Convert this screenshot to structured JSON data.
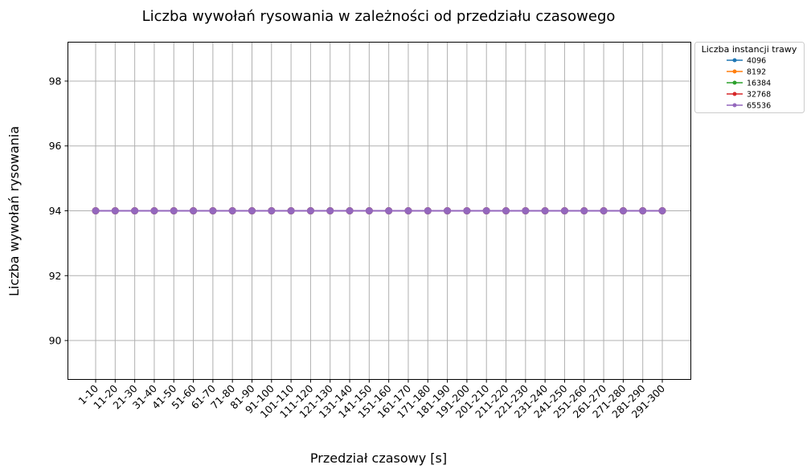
{
  "chart_data": {
    "type": "line",
    "title": "Liczba wywołań rysowania w zależności od przedziału czasowego",
    "xlabel": "Przedział czasowy [s]",
    "ylabel": "Liczba wywołań rysowania",
    "categories": [
      "1-10",
      "11-20",
      "21-30",
      "31-40",
      "41-50",
      "51-60",
      "61-70",
      "71-80",
      "81-90",
      "91-100",
      "101-110",
      "111-120",
      "121-130",
      "131-140",
      "141-150",
      "151-160",
      "161-170",
      "171-180",
      "181-190",
      "191-200",
      "201-210",
      "211-220",
      "221-230",
      "231-240",
      "241-250",
      "251-260",
      "261-270",
      "271-280",
      "281-290",
      "291-300"
    ],
    "yticks": [
      90,
      92,
      94,
      96,
      98
    ],
    "ylim": [
      88.8,
      99.2
    ],
    "grid": true,
    "legend": {
      "title": "Liczba instancji trawy",
      "placement": "outside-top-right"
    },
    "series": [
      {
        "name": "4096",
        "color": "#1f77b4",
        "values": [
          94,
          94,
          94,
          94,
          94,
          94,
          94,
          94,
          94,
          94,
          94,
          94,
          94,
          94,
          94,
          94,
          94,
          94,
          94,
          94,
          94,
          94,
          94,
          94,
          94,
          94,
          94,
          94,
          94,
          94
        ]
      },
      {
        "name": "8192",
        "color": "#ff7f0e",
        "values": [
          94,
          94,
          94,
          94,
          94,
          94,
          94,
          94,
          94,
          94,
          94,
          94,
          94,
          94,
          94,
          94,
          94,
          94,
          94,
          94,
          94,
          94,
          94,
          94,
          94,
          94,
          94,
          94,
          94,
          94
        ]
      },
      {
        "name": "16384",
        "color": "#2ca02c",
        "values": [
          94,
          94,
          94,
          94,
          94,
          94,
          94,
          94,
          94,
          94,
          94,
          94,
          94,
          94,
          94,
          94,
          94,
          94,
          94,
          94,
          94,
          94,
          94,
          94,
          94,
          94,
          94,
          94,
          94,
          94
        ]
      },
      {
        "name": "32768",
        "color": "#d62728",
        "values": [
          94,
          94,
          94,
          94,
          94,
          94,
          94,
          94,
          94,
          94,
          94,
          94,
          94,
          94,
          94,
          94,
          94,
          94,
          94,
          94,
          94,
          94,
          94,
          94,
          94,
          94,
          94,
          94,
          94,
          94
        ]
      },
      {
        "name": "65536",
        "color": "#9467bd",
        "values": [
          94,
          94,
          94,
          94,
          94,
          94,
          94,
          94,
          94,
          94,
          94,
          94,
          94,
          94,
          94,
          94,
          94,
          94,
          94,
          94,
          94,
          94,
          94,
          94,
          94,
          94,
          94,
          94,
          94,
          94
        ]
      }
    ]
  }
}
